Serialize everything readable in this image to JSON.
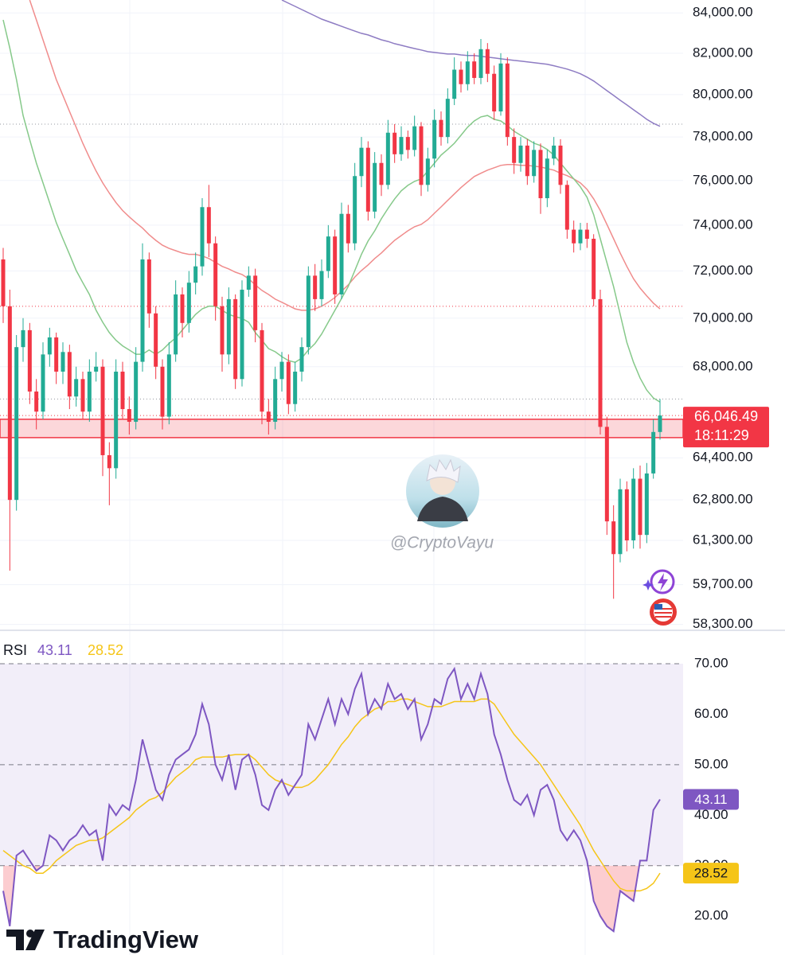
{
  "chart_data": [
    {
      "type": "candlestick",
      "log_scale": true,
      "ylim": [
        58150,
        84650
      ],
      "yticks": [
        {
          "value": 84000,
          "label": "84,000.00"
        },
        {
          "value": 82000,
          "label": "82,000.00"
        },
        {
          "value": 80000,
          "label": "80,000.00"
        },
        {
          "value": 78000,
          "label": "78,000.00"
        },
        {
          "value": 76000,
          "label": "76,000.00"
        },
        {
          "value": 74000,
          "label": "74,000.00"
        },
        {
          "value": 72000,
          "label": "72,000.00"
        },
        {
          "value": 70000,
          "label": "70,000.00"
        },
        {
          "value": 68000,
          "label": "68,000.00"
        },
        {
          "value": 64400,
          "label": "64,400.00"
        },
        {
          "value": 62800,
          "label": "62,800.00"
        },
        {
          "value": 61300,
          "label": "61,300.00"
        },
        {
          "value": 59700,
          "label": "59,700.00"
        },
        {
          "value": 58300,
          "label": "58,300.00"
        }
      ],
      "grid": true,
      "up_color": "#22ab94",
      "down_color": "#f23645",
      "open": [
        72500,
        70500,
        62800,
        68800,
        69500,
        67000,
        66200,
        68500,
        69200,
        67800,
        68600,
        66800,
        67500,
        66200,
        67800,
        68000,
        64500,
        64000,
        67800,
        66300,
        65800,
        68200,
        72500,
        70200,
        68000,
        66000,
        68500,
        71000,
        69800,
        71500,
        72200,
        74800,
        73200,
        70500,
        68500,
        70800,
        67500,
        71200,
        71800,
        69500,
        66200,
        65800,
        67500,
        68200,
        66500,
        67800,
        68800,
        71800,
        70800,
        72000,
        73500,
        71000,
        74500,
        73200,
        76200,
        77500,
        74600,
        76800,
        75800,
        78200,
        77200,
        78000,
        77400,
        78500,
        75800,
        77000,
        78800,
        78000,
        79800,
        81200,
        80500,
        81600,
        80800,
        82200,
        81000,
        79200,
        81500,
        78000,
        76800,
        77600,
        76200,
        77400,
        75200,
        77000,
        77600,
        75800,
        73800,
        73200,
        73800,
        73400,
        70800,
        65600,
        62000,
        60800,
        63200,
        61300,
        63600,
        61500,
        63800,
        65400
      ],
      "high": [
        73000,
        71200,
        69300,
        70000,
        69800,
        67500,
        69000,
        69600,
        69400,
        69000,
        68900,
        68000,
        67800,
        68300,
        68600,
        68300,
        65000,
        68300,
        68200,
        66800,
        68800,
        73200,
        72800,
        70500,
        68300,
        69000,
        71600,
        71300,
        72000,
        72800,
        75200,
        75800,
        73500,
        70900,
        71300,
        71000,
        71600,
        72200,
        72100,
        69800,
        66700,
        68000,
        68600,
        68500,
        68200,
        69200,
        72200,
        72300,
        72500,
        74000,
        73800,
        75000,
        74900,
        76800,
        78000,
        77800,
        77300,
        77200,
        78800,
        78600,
        78500,
        78300,
        79000,
        78700,
        77500,
        79300,
        79200,
        80300,
        81800,
        81600,
        82100,
        82000,
        82700,
        82500,
        81400,
        82000,
        81800,
        78400,
        78000,
        77900,
        77800,
        77700,
        77400,
        78000,
        77900,
        76000,
        74200,
        74100,
        74100,
        73600,
        71200,
        66000,
        62600,
        63600,
        63500,
        64000,
        64100,
        64200,
        65900,
        66700
      ],
      "low": [
        69800,
        60200,
        62400,
        68200,
        66500,
        65500,
        65900,
        68000,
        67300,
        67300,
        66300,
        66400,
        65900,
        65800,
        67400,
        63700,
        62600,
        63600,
        65900,
        65300,
        65500,
        67800,
        69600,
        67500,
        65500,
        65700,
        68200,
        69200,
        69400,
        71000,
        71800,
        72600,
        69900,
        67800,
        68100,
        67100,
        67200,
        70900,
        69000,
        65700,
        65300,
        65500,
        67000,
        66100,
        66200,
        67400,
        68500,
        70300,
        70500,
        71700,
        70600,
        70800,
        72800,
        72900,
        75700,
        74200,
        74300,
        75300,
        75600,
        76800,
        76900,
        77000,
        77100,
        75300,
        75500,
        76600,
        77600,
        77700,
        79500,
        80100,
        80200,
        80500,
        80500,
        80600,
        78800,
        79000,
        77600,
        76300,
        76400,
        75800,
        75900,
        74500,
        74800,
        76700,
        75400,
        73400,
        72800,
        72900,
        73000,
        70500,
        65300,
        61500,
        59200,
        60500,
        60900,
        61000,
        61000,
        61200,
        63600,
        65100
      ],
      "close": [
        70500,
        62800,
        68800,
        69500,
        67000,
        66200,
        68500,
        69200,
        67800,
        68600,
        66800,
        67500,
        66200,
        67800,
        68000,
        64500,
        64000,
        67800,
        66300,
        65800,
        68200,
        72500,
        70200,
        68000,
        66000,
        68500,
        71000,
        69800,
        71500,
        72200,
        74800,
        73200,
        70500,
        68500,
        70800,
        67500,
        71200,
        71800,
        69500,
        66200,
        65800,
        67500,
        68200,
        66500,
        67800,
        68800,
        71800,
        70800,
        72000,
        73500,
        71000,
        74500,
        73200,
        76200,
        77500,
        74600,
        76800,
        75800,
        78200,
        77200,
        78000,
        77400,
        78500,
        75800,
        77000,
        78800,
        78000,
        79800,
        81200,
        80500,
        81600,
        80800,
        82200,
        81000,
        79200,
        81500,
        78000,
        76800,
        77600,
        76200,
        77400,
        75200,
        77000,
        77600,
        75800,
        73800,
        73200,
        73800,
        73400,
        70800,
        65600,
        62000,
        60800,
        63200,
        61300,
        63600,
        61500,
        63800,
        65400,
        66046.49
      ],
      "overlays": [
        {
          "color": "#8e7cc3",
          "values": [
            null,
            null,
            null,
            null,
            null,
            null,
            null,
            null,
            null,
            null,
            null,
            null,
            null,
            null,
            null,
            null,
            null,
            null,
            null,
            null,
            null,
            null,
            null,
            null,
            null,
            null,
            null,
            null,
            null,
            null,
            null,
            null,
            null,
            null,
            null,
            null,
            null,
            null,
            null,
            null,
            null,
            null,
            84650,
            84490,
            84330,
            84170,
            84010,
            83850,
            83690,
            83570,
            83450,
            83330,
            83210,
            83090,
            82980,
            82900,
            82780,
            82660,
            82580,
            82470,
            82390,
            82310,
            82230,
            82160,
            82080,
            82040,
            82000,
            81960,
            81960,
            81920,
            81890,
            81890,
            81850,
            81810,
            81770,
            81730,
            81690,
            81650,
            81620,
            81580,
            81540,
            81500,
            81460,
            81390,
            81310,
            81230,
            81120,
            81000,
            80840,
            80650,
            80420,
            80190,
            79960,
            79730,
            79510,
            79280,
            79060,
            78830,
            78640,
            78500
          ]
        },
        {
          "color": "#f08c8c",
          "values": [
            null,
            null,
            null,
            null,
            84650,
            83650,
            82660,
            81690,
            80720,
            79960,
            79200,
            78450,
            77710,
            77050,
            76430,
            75890,
            75430,
            75000,
            74650,
            74370,
            74110,
            73870,
            73580,
            73330,
            73120,
            72980,
            72880,
            72780,
            72720,
            72720,
            72650,
            72540,
            72370,
            72200,
            72090,
            71950,
            71850,
            71670,
            71400,
            71170,
            71000,
            70800,
            70670,
            70530,
            70390,
            70330,
            70330,
            70390,
            70500,
            70670,
            70870,
            71130,
            71400,
            71740,
            72020,
            72260,
            72540,
            72780,
            73060,
            73330,
            73540,
            73750,
            73930,
            74030,
            74240,
            74530,
            74810,
            75100,
            75390,
            75680,
            75930,
            76180,
            76330,
            76470,
            76580,
            76690,
            76730,
            76730,
            76690,
            76690,
            76650,
            76620,
            76540,
            76470,
            76330,
            76220,
            76070,
            75890,
            75600,
            75170,
            74650,
            74030,
            73400,
            72780,
            72200,
            71670,
            71270,
            70940,
            70630,
            70390
          ]
        },
        {
          "color": "#86c98a",
          "values": [
            83650,
            82260,
            80720,
            79010,
            77880,
            76790,
            75890,
            75000,
            74110,
            73400,
            72720,
            72020,
            71500,
            71000,
            70330,
            69830,
            69400,
            69080,
            68850,
            68680,
            68510,
            68510,
            68680,
            68510,
            68680,
            68950,
            69180,
            69510,
            69830,
            70160,
            70390,
            70500,
            70500,
            70330,
            70160,
            70060,
            69990,
            69830,
            69400,
            69080,
            68740,
            68610,
            68410,
            68250,
            68180,
            68350,
            68680,
            68950,
            69340,
            69830,
            70330,
            70830,
            71330,
            72020,
            72720,
            73300,
            73750,
            74280,
            74740,
            75170,
            75530,
            75780,
            75960,
            76070,
            76430,
            76790,
            77160,
            77420,
            77710,
            78080,
            78460,
            78750,
            78940,
            79010,
            78830,
            78750,
            78530,
            78270,
            78080,
            77900,
            77710,
            77600,
            77420,
            77160,
            76790,
            76430,
            76070,
            75710,
            75240,
            74460,
            73400,
            72360,
            71330,
            70160,
            69000,
            68180,
            67540,
            67060,
            66740,
            66580
          ]
        }
      ],
      "levels": [
        {
          "value": 78600,
          "color": "#9598a1"
        },
        {
          "value": 70500,
          "color": "#f23645"
        },
        {
          "value": 66700,
          "color": "#9598a1"
        }
      ],
      "zone": {
        "range": [
          65180,
          65900
        ],
        "color": "#f23645"
      },
      "price_tag": {
        "value": 66046.49,
        "label": "66,046.49",
        "countdown": "18:11:29",
        "color": "#f23645"
      },
      "watermark": "@CryptoVayu"
    },
    {
      "type": "line",
      "title": "RSI",
      "ylim": [
        12.3,
        75.35
      ],
      "yticks": [
        {
          "value": 20,
          "label": "20.00"
        },
        {
          "value": 30,
          "label": "30.00"
        },
        {
          "value": 40,
          "label": "40.00"
        },
        {
          "value": 50,
          "label": "50.00"
        },
        {
          "value": 60,
          "label": "60.00"
        },
        {
          "value": 70,
          "label": "70.00"
        }
      ],
      "band": [
        30,
        70
      ],
      "band_color": "#7e57c2",
      "levels": [
        70,
        50,
        30
      ],
      "oversold_color": "#f23645",
      "series": [
        {
          "color": "#7e57c2",
          "values": [
            25,
            18,
            32,
            33,
            31,
            29,
            30,
            36,
            35,
            33,
            35,
            36,
            38,
            36,
            37,
            31,
            42,
            40,
            42,
            41,
            47,
            55,
            50,
            45,
            43,
            48,
            51,
            52,
            53,
            56,
            62,
            58,
            50,
            47,
            52,
            45,
            51,
            52,
            48,
            42,
            41,
            45,
            47,
            44,
            46,
            48,
            58,
            55,
            59,
            63,
            58,
            63,
            60,
            65,
            68,
            60,
            63,
            61,
            66,
            63,
            64,
            61,
            63,
            55,
            58,
            63,
            62,
            67,
            69,
            63,
            66,
            63,
            68,
            64,
            56,
            52,
            47,
            43,
            42,
            44,
            40,
            45,
            46,
            43,
            37,
            35,
            37,
            35,
            31,
            23,
            20,
            18,
            17,
            25,
            24,
            23,
            31,
            31,
            41,
            43.11
          ]
        },
        {
          "color": "#f5c518",
          "values": [
            33,
            32,
            31,
            30,
            29.5,
            28.5,
            28.5,
            29.5,
            31,
            32,
            33,
            34,
            34.5,
            35,
            35,
            35.5,
            36.5,
            37.5,
            38.5,
            39.5,
            41,
            42,
            43,
            43.5,
            44.5,
            46,
            47.5,
            48.5,
            49.5,
            51,
            51.5,
            51.5,
            51.5,
            51.5,
            51.8,
            52,
            52,
            52,
            51,
            49.5,
            48,
            47,
            46.5,
            46,
            45.5,
            45.5,
            46,
            47,
            48.5,
            50,
            52,
            54,
            55.5,
            57.5,
            59,
            60,
            61,
            61.5,
            62.5,
            62.5,
            63,
            63,
            62.5,
            62,
            61.5,
            61.5,
            61.5,
            62,
            62.5,
            62.5,
            62.5,
            62.5,
            63,
            63,
            62,
            60,
            58,
            56,
            54.5,
            53,
            51.5,
            50,
            48,
            46,
            44,
            42,
            40,
            38,
            35.5,
            33,
            31,
            29,
            27,
            25.5,
            25,
            25,
            25,
            25.5,
            26.5,
            28.52
          ]
        }
      ]
    }
  ],
  "brand": "TradingView"
}
